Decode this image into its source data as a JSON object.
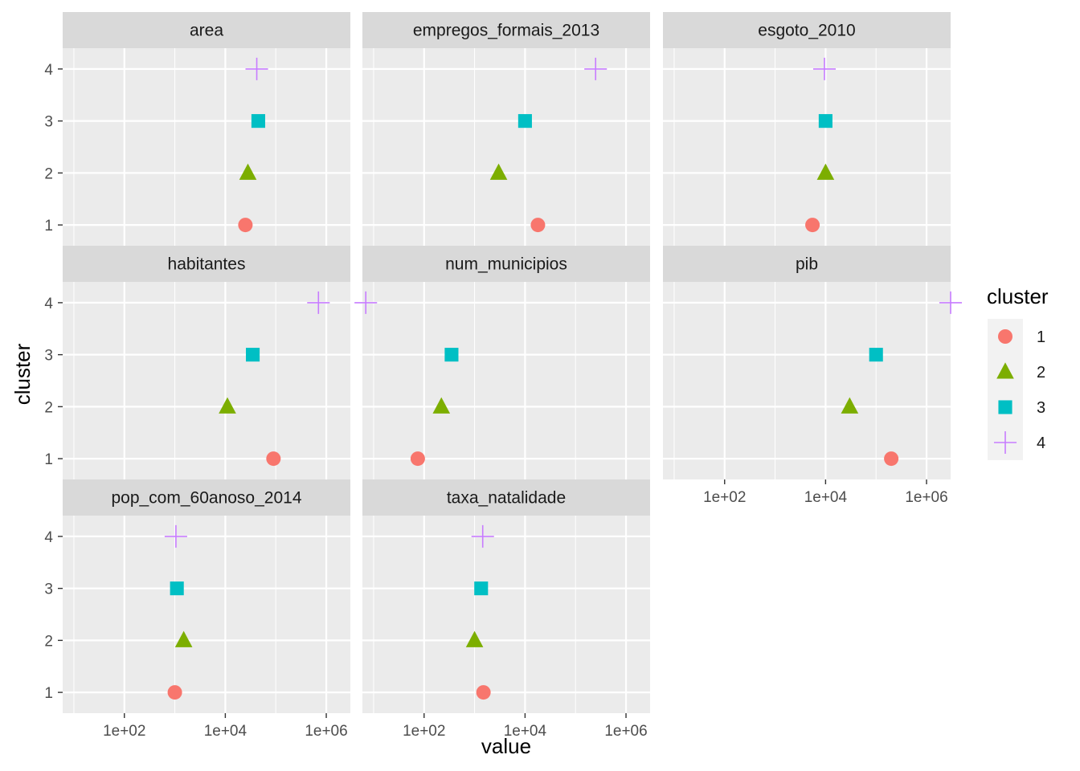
{
  "chart_data": {
    "type": "scatter",
    "xscale": "log10",
    "xlim": [
      6,
      3000000
    ],
    "ylim": [
      0.6,
      4.4
    ],
    "xlabel": "value",
    "ylabel": "cluster",
    "x_ticks": [
      100,
      10000,
      1000000
    ],
    "x_tick_labels": [
      "1e+02",
      "1e+04",
      "1e+06"
    ],
    "y_ticks": [
      1,
      2,
      3,
      4
    ],
    "y_tick_labels": [
      "1",
      "2",
      "3",
      "4"
    ],
    "grid": true,
    "legend": {
      "title": "cluster",
      "position": "right",
      "entries": [
        {
          "label": "1",
          "color": "#F8766D",
          "shape": "circle"
        },
        {
          "label": "2",
          "color": "#7CAE00",
          "shape": "triangle"
        },
        {
          "label": "3",
          "color": "#00BFC4",
          "shape": "square"
        },
        {
          "label": "4",
          "color": "#C77CFF",
          "shape": "plus"
        }
      ]
    },
    "facets": [
      {
        "name": "area",
        "points": [
          {
            "cluster": 1,
            "x": 25000
          },
          {
            "cluster": 2,
            "x": 28000
          },
          {
            "cluster": 3,
            "x": 45000
          },
          {
            "cluster": 4,
            "x": 42000
          }
        ]
      },
      {
        "name": "empregos_formais_2013",
        "points": [
          {
            "cluster": 1,
            "x": 18000
          },
          {
            "cluster": 2,
            "x": 3000
          },
          {
            "cluster": 3,
            "x": 10000
          },
          {
            "cluster": 4,
            "x": 250000
          }
        ]
      },
      {
        "name": "esgoto_2010",
        "points": [
          {
            "cluster": 1,
            "x": 5500
          },
          {
            "cluster": 2,
            "x": 10000
          },
          {
            "cluster": 3,
            "x": 10000
          },
          {
            "cluster": 4,
            "x": 9500
          }
        ]
      },
      {
        "name": "habitantes",
        "points": [
          {
            "cluster": 1,
            "x": 90000
          },
          {
            "cluster": 2,
            "x": 11000
          },
          {
            "cluster": 3,
            "x": 35000
          },
          {
            "cluster": 4,
            "x": 700000
          }
        ]
      },
      {
        "name": "num_municipios",
        "points": [
          {
            "cluster": 1,
            "x": 75
          },
          {
            "cluster": 2,
            "x": 220
          },
          {
            "cluster": 3,
            "x": 350
          },
          {
            "cluster": 4,
            "x": 7
          }
        ]
      },
      {
        "name": "pib",
        "points": [
          {
            "cluster": 1,
            "x": 200000
          },
          {
            "cluster": 2,
            "x": 30000
          },
          {
            "cluster": 3,
            "x": 100000
          },
          {
            "cluster": 4,
            "x": 3000000
          }
        ]
      },
      {
        "name": "pop_com_60anoso_2014",
        "points": [
          {
            "cluster": 1,
            "x": 1000
          },
          {
            "cluster": 2,
            "x": 1500
          },
          {
            "cluster": 3,
            "x": 1100
          },
          {
            "cluster": 4,
            "x": 1050
          }
        ]
      },
      {
        "name": "taxa_natalidade",
        "points": [
          {
            "cluster": 1,
            "x": 1500
          },
          {
            "cluster": 2,
            "x": 1000
          },
          {
            "cluster": 3,
            "x": 1350
          },
          {
            "cluster": 4,
            "x": 1450
          }
        ]
      }
    ]
  }
}
